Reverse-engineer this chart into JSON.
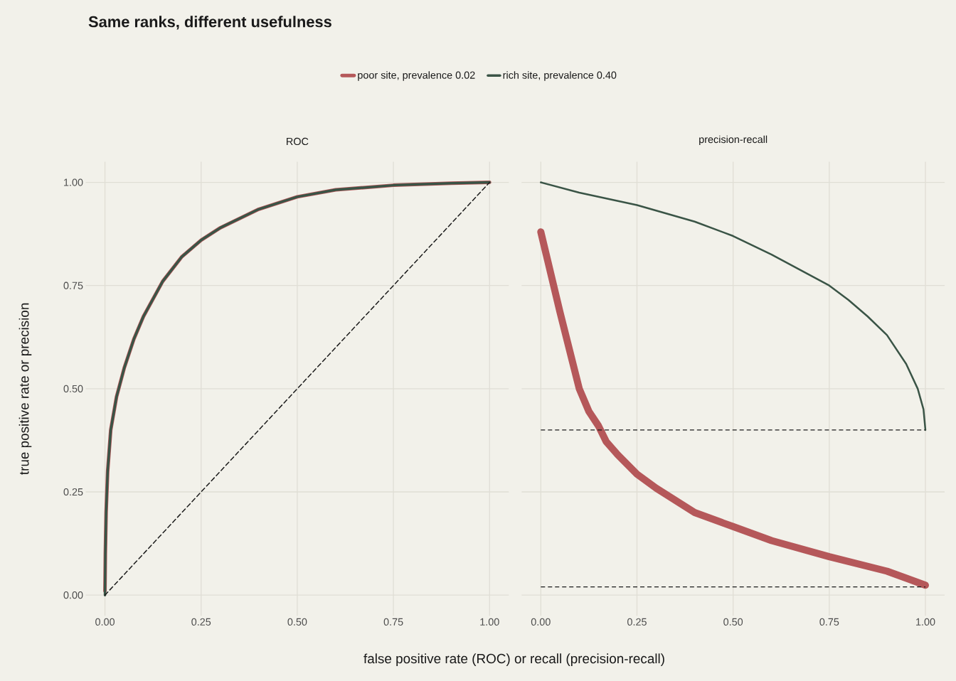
{
  "chart_data": [
    {
      "type": "line",
      "title": "Same ranks, different usefulness",
      "subtitle": "ROC",
      "xlabel": "false positive rate (ROC) or recall (precision-recall)",
      "ylabel": "true positive rate or precision",
      "xlim": [
        -0.05,
        1.05
      ],
      "ylim": [
        -0.05,
        1.05
      ],
      "xticks": [
        {
          "value": 0,
          "label": "0.00"
        },
        {
          "value": 0.25,
          "label": "0.25"
        },
        {
          "value": 0.5,
          "label": "0.50"
        },
        {
          "value": 0.75,
          "label": "0.75"
        },
        {
          "value": 1,
          "label": "1.00"
        }
      ],
      "yticks": [
        {
          "value": 0,
          "label": "0.00"
        },
        {
          "value": 0.25,
          "label": "0.25"
        },
        {
          "value": 0.5,
          "label": "0.50"
        },
        {
          "value": 0.75,
          "label": "0.75"
        },
        {
          "value": 1,
          "label": "1.00"
        }
      ],
      "grid": true,
      "legend": "top",
      "series": [
        {
          "name": "poor site, prevalence 0.02",
          "color": "#b5585a",
          "x": [
            0,
            0.001,
            0.003,
            0.007,
            0.015,
            0.03,
            0.05,
            0.075,
            0.1,
            0.15,
            0.2,
            0.25,
            0.3,
            0.4,
            0.5,
            0.6,
            0.75,
            0.9,
            1
          ],
          "values": [
            0.01,
            0.1,
            0.2,
            0.3,
            0.4,
            0.48,
            0.55,
            0.62,
            0.675,
            0.76,
            0.82,
            0.86,
            0.89,
            0.935,
            0.965,
            0.982,
            0.993,
            0.998,
            1
          ]
        },
        {
          "name": "rich site, prevalence 0.40",
          "color": "#3a5446",
          "x": [
            0,
            0.001,
            0.003,
            0.007,
            0.015,
            0.03,
            0.05,
            0.075,
            0.1,
            0.15,
            0.2,
            0.25,
            0.3,
            0.4,
            0.5,
            0.6,
            0.75,
            0.9,
            1
          ],
          "values": [
            0,
            0.1,
            0.2,
            0.3,
            0.4,
            0.48,
            0.55,
            0.62,
            0.675,
            0.76,
            0.82,
            0.86,
            0.89,
            0.935,
            0.965,
            0.982,
            0.993,
            0.998,
            1
          ]
        },
        {
          "color": "#1a1a1a",
          "line_style": "dashed",
          "x": [
            0,
            1
          ],
          "values": [
            0,
            1
          ]
        }
      ]
    },
    {
      "type": "line",
      "subtitle": "precision-recall",
      "xlim": [
        -0.05,
        1.05
      ],
      "ylim": [
        -0.05,
        1.05
      ],
      "xticks": [
        {
          "value": 0,
          "label": "0.00"
        },
        {
          "value": 0.25,
          "label": "0.25"
        },
        {
          "value": 0.5,
          "label": "0.50"
        },
        {
          "value": 0.75,
          "label": "0.75"
        },
        {
          "value": 1,
          "label": "1.00"
        }
      ],
      "yticks": [
        {
          "value": 0,
          "label": null
        },
        {
          "value": 0.25,
          "label": null
        },
        {
          "value": 0.5,
          "label": null
        },
        {
          "value": 0.75,
          "label": null
        },
        {
          "value": 1,
          "label": null
        }
      ],
      "grid": true,
      "tick_labels": "x",
      "series": [
        {
          "color": "#b5585a",
          "x": [
            0,
            0.05,
            0.1,
            0.125,
            0.15,
            0.17,
            0.2,
            0.25,
            0.3,
            0.4,
            0.5,
            0.6,
            0.75,
            0.9,
            1
          ],
          "values": [
            0.88,
            0.685,
            0.5,
            0.445,
            0.41,
            0.372,
            0.34,
            0.293,
            0.259,
            0.2,
            0.166,
            0.132,
            0.093,
            0.058,
            0.024
          ]
        },
        {
          "color": "#3a5446",
          "x": [
            0,
            0.1,
            0.25,
            0.4,
            0.5,
            0.6,
            0.7,
            0.75,
            0.8,
            0.85,
            0.9,
            0.95,
            0.98,
            0.995,
            1
          ],
          "values": [
            1,
            0.975,
            0.945,
            0.905,
            0.87,
            0.825,
            0.775,
            0.75,
            0.715,
            0.675,
            0.63,
            0.56,
            0.5,
            0.45,
            0.4
          ]
        }
      ],
      "ref_lines": [
        {
          "axis": "y",
          "value": 0.4,
          "color": "#1a1a1a",
          "line_style": "dashed"
        },
        {
          "axis": "y",
          "value": 0.02,
          "color": "#1a1a1a",
          "line_style": "dashed"
        }
      ]
    }
  ]
}
